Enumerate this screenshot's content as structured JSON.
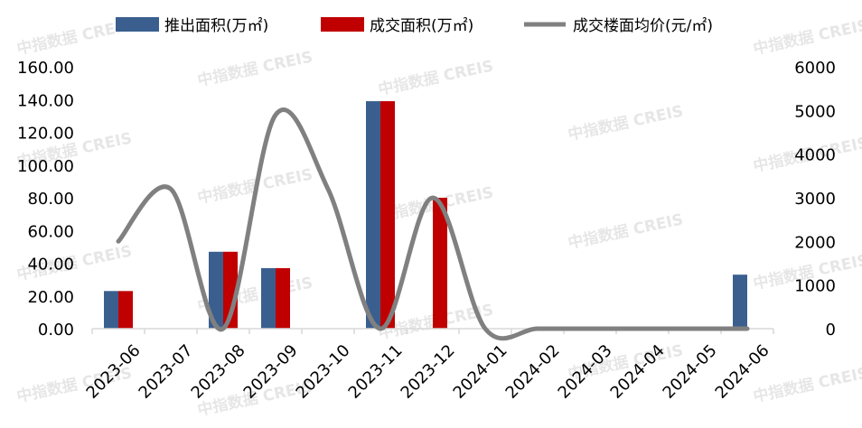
{
  "watermark": "中指数据 CREIS",
  "chart_data": {
    "type": "bar",
    "categories": [
      "2023-06",
      "2023-07",
      "2023-08",
      "2023-09",
      "2023-10",
      "2023-11",
      "2023-12",
      "2024-01",
      "2024-02",
      "2024-03",
      "2024-04",
      "2024-05",
      "2024-06"
    ],
    "series": [
      {
        "name": "推出面积(万㎡)",
        "type": "bar",
        "axis": "left",
        "color": "#3a5f8f",
        "values": [
          23,
          0,
          47,
          37,
          0,
          139,
          0,
          0,
          0,
          0,
          0,
          0,
          33
        ]
      },
      {
        "name": "成交面积(万㎡)",
        "type": "bar",
        "axis": "left",
        "color": "#c00000",
        "values": [
          23,
          0,
          47,
          37,
          0,
          139,
          80,
          0,
          0,
          0,
          0,
          0,
          0
        ]
      },
      {
        "name": "成交楼面均价(元/㎡)",
        "type": "line",
        "axis": "right",
        "color": "#808080",
        "values": [
          2000,
          3200,
          0,
          4900,
          3200,
          0,
          3000,
          0,
          0,
          0,
          0,
          0,
          0
        ]
      }
    ],
    "y_left": {
      "min": 0,
      "max": 160,
      "step": 20,
      "tick_labels": [
        "0.00",
        "20.00",
        "40.00",
        "60.00",
        "80.00",
        "100.00",
        "120.00",
        "140.00",
        "160.00"
      ]
    },
    "y_right": {
      "min": 0,
      "max": 6000,
      "step": 1000,
      "tick_labels": [
        "0",
        "1000",
        "2000",
        "3000",
        "4000",
        "5000",
        "6000"
      ]
    },
    "legend_position": "top",
    "grid": false
  }
}
